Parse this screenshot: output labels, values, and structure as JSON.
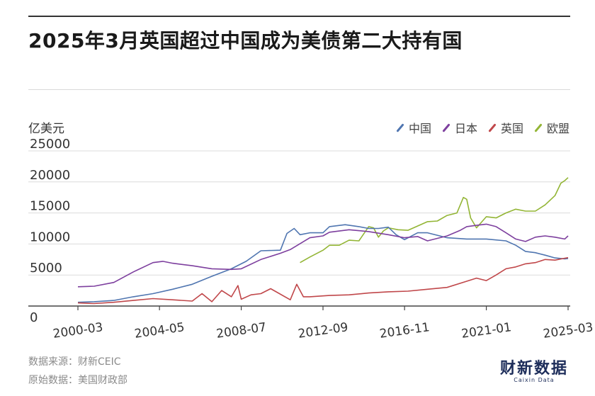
{
  "title": "2025年3月英国超过中国成为美债第二大持有国",
  "unit_label": "亿美元",
  "source_line1": "数据来源：财新CEIC",
  "source_line2": "原始数据：美国财政部",
  "logo": {
    "main": "财新数据",
    "sub": "Caixin Data"
  },
  "colors": {
    "中国": "#4f75b0",
    "日本": "#7d3f9e",
    "英国": "#c0474a",
    "欧盟": "#93b535"
  },
  "chart_data": {
    "type": "line",
    "title": "2025年3月英国超过中国成为美债第二大持有国",
    "ylabel": "亿美元",
    "xlabel": "",
    "xlim": [
      2000.17,
      2025.17
    ],
    "ylim": [
      0,
      25000
    ],
    "yticks": [
      0,
      5000,
      10000,
      15000,
      20000,
      25000
    ],
    "xticks": [
      {
        "value": 2000.17,
        "label": "2000-03"
      },
      {
        "value": 2004.33,
        "label": "2004-05"
      },
      {
        "value": 2008.5,
        "label": "2008-07"
      },
      {
        "value": 2012.67,
        "label": "2012-09"
      },
      {
        "value": 2016.83,
        "label": "2016-11"
      },
      {
        "value": 2021.0,
        "label": "2021-01"
      },
      {
        "value": 2025.17,
        "label": "2025-03"
      }
    ],
    "legend_position": "top-right",
    "grid": "horizontal",
    "series": [
      {
        "name": "中国",
        "x": [
          2000.17,
          2001,
          2002,
          2003,
          2004,
          2005,
          2006,
          2007,
          2008,
          2008.75,
          2009.5,
          2010.5,
          2010.83,
          2011.2,
          2011.5,
          2012,
          2012.67,
          2013,
          2013.8,
          2014.5,
          2015,
          2015.5,
          2016,
          2016.4,
          2016.83,
          2017.5,
          2018,
          2019,
          2020,
          2021,
          2022,
          2022.5,
          2023,
          2023.5,
          2024,
          2024.5,
          2025,
          2025.17
        ],
        "y": [
          600,
          700,
          900,
          1500,
          2000,
          2700,
          3500,
          4800,
          6000,
          7200,
          8900,
          9000,
          11700,
          12500,
          11500,
          11800,
          11800,
          12800,
          13100,
          12800,
          12500,
          12500,
          12700,
          11500,
          10700,
          11800,
          11800,
          11000,
          10800,
          10800,
          10500,
          9800,
          8800,
          8600,
          8200,
          7750,
          7600,
          7650
        ]
      },
      {
        "name": "日本",
        "x": [
          2000.17,
          2001,
          2002,
          2003,
          2004,
          2004.5,
          2005,
          2006,
          2007,
          2008,
          2008.5,
          2009.5,
          2010.5,
          2011,
          2012,
          2012.67,
          2013,
          2014,
          2015,
          2016,
          2016.83,
          2017.5,
          2018,
          2019,
          2019.67,
          2020,
          2020.5,
          2021,
          2021.5,
          2022,
          2022.5,
          2023,
          2023.5,
          2024,
          2024.5,
          2025,
          2025.17
        ],
        "y": [
          3100,
          3200,
          3800,
          5500,
          7000,
          7200,
          6900,
          6500,
          6000,
          5900,
          6000,
          7500,
          8500,
          9100,
          11000,
          11300,
          11900,
          12300,
          12000,
          11500,
          11000,
          11200,
          10500,
          11300,
          12200,
          12800,
          13000,
          13200,
          12800,
          11800,
          10800,
          10400,
          11100,
          11300,
          11100,
          10800,
          11300
        ]
      },
      {
        "name": "英国",
        "x": [
          2000.17,
          2001,
          2002,
          2003,
          2004,
          2005,
          2006,
          2006.5,
          2007,
          2007.5,
          2008,
          2008.33,
          2008.5,
          2009,
          2009.5,
          2010,
          2011,
          2011.33,
          2011.67,
          2012,
          2013,
          2014,
          2015,
          2016,
          2017,
          2018,
          2019,
          2020,
          2020.5,
          2021,
          2021.5,
          2022,
          2022.5,
          2023,
          2023.5,
          2024,
          2024.5,
          2025,
          2025.17
        ],
        "y": [
          500,
          400,
          600,
          900,
          1200,
          1000,
          800,
          2000,
          700,
          2500,
          1500,
          3300,
          1100,
          1800,
          2000,
          2800,
          1000,
          3500,
          1500,
          1500,
          1700,
          1800,
          2100,
          2300,
          2400,
          2700,
          3000,
          4000,
          4500,
          4100,
          5000,
          6000,
          6300,
          6800,
          7000,
          7500,
          7400,
          7700,
          7800
        ]
      },
      {
        "name": "欧盟",
        "x": [
          2011.5,
          2012,
          2012.67,
          2013,
          2013.5,
          2014,
          2014.5,
          2015,
          2015.25,
          2015.5,
          2015.75,
          2016,
          2016.5,
          2017,
          2017.5,
          2018,
          2018.5,
          2019,
          2019.5,
          2019.83,
          2020,
          2020.2,
          2020.5,
          2021,
          2021.5,
          2022,
          2022.5,
          2023,
          2023.5,
          2024,
          2024.5,
          2024.8,
          2025,
          2025.17
        ],
        "y": [
          7000,
          7900,
          9000,
          9800,
          9800,
          10600,
          10500,
          12800,
          12600,
          11100,
          12100,
          12600,
          12300,
          12200,
          12900,
          13600,
          13700,
          14600,
          15000,
          17500,
          17200,
          14200,
          12600,
          14400,
          14200,
          15000,
          15600,
          15300,
          15300,
          16300,
          17800,
          19800,
          20200,
          20700
        ]
      }
    ]
  }
}
